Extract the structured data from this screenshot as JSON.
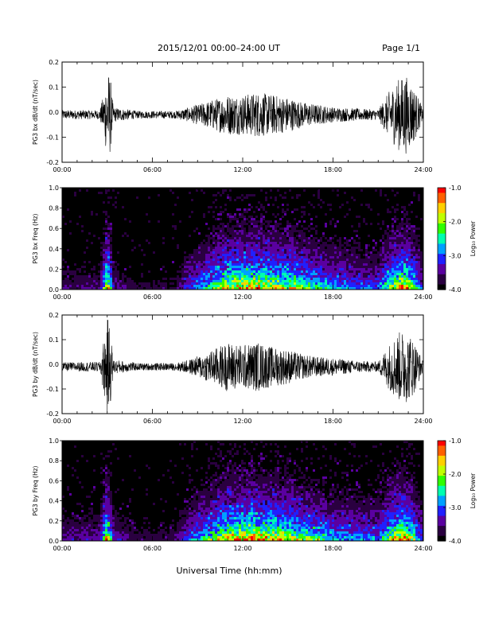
{
  "header": {
    "title": "2015/12/01  00:00–24:00 UT",
    "page": "Page 1/1"
  },
  "xlabel": "Universal Time (hh:mm)",
  "colorbar_label": "Log₁₀ Power",
  "colormap": [
    "#000000",
    "#2a0040",
    "#5a00a0",
    "#2020ff",
    "#00a0ff",
    "#00ffb0",
    "#30ff00",
    "#c0ff00",
    "#ffd000",
    "#ff6000",
    "#ff0000"
  ],
  "chart_data": [
    {
      "type": "line",
      "ylabel": "PG3 bx dB/dt (nT/sec)",
      "x_ticks": [
        "00:00",
        "06:00",
        "12:00",
        "18:00",
        "24:00"
      ],
      "xlim": [
        0,
        24
      ],
      "ylim": [
        -0.2,
        0.2
      ],
      "y_ticks": [
        "-0.2",
        "-0.1",
        "0.0",
        "0.1",
        "0.2"
      ],
      "baseline": -0.01,
      "envelope": {
        "hours": [
          0,
          2.5,
          2.8,
          3.0,
          3.2,
          3.4,
          5,
          7.5,
          8.5,
          10,
          11,
          12,
          13,
          14,
          15,
          16,
          17,
          18,
          19.5,
          21,
          21.8,
          22.3,
          22.8,
          23.3,
          24
        ],
        "amplitude": [
          0.018,
          0.018,
          0.09,
          0.18,
          0.16,
          0.03,
          0.015,
          0.015,
          0.03,
          0.06,
          0.08,
          0.08,
          0.09,
          0.08,
          0.07,
          0.05,
          0.04,
          0.03,
          0.025,
          0.02,
          0.1,
          0.14,
          0.16,
          0.12,
          0.02
        ]
      }
    },
    {
      "type": "heatmap",
      "ylabel": "PG3 bx Freq (Hz)",
      "x_ticks": [
        "00:00",
        "06:00",
        "12:00",
        "18:00",
        "24:00"
      ],
      "xlim": [
        0,
        24
      ],
      "ylim": [
        0,
        1.0
      ],
      "y_ticks": [
        "0.0",
        "0.2",
        "0.4",
        "0.6",
        "0.8",
        "1.0"
      ],
      "colorbar_ticks": [
        "-1.0",
        "-2.0",
        "-3.0",
        "-4.0"
      ],
      "clim": [
        -4.0,
        -1.0
      ],
      "activity": {
        "hours": [
          0,
          2.5,
          2.8,
          3.0,
          3.2,
          3.4,
          5,
          7.5,
          8.5,
          10,
          11,
          12,
          13,
          14,
          15,
          16,
          17,
          18,
          19.5,
          21,
          21.8,
          22.3,
          22.8,
          23.3,
          24
        ],
        "level": [
          0.15,
          0.15,
          0.5,
          0.9,
          0.6,
          0.2,
          0.1,
          0.1,
          0.3,
          0.55,
          0.75,
          0.8,
          0.8,
          0.75,
          0.7,
          0.6,
          0.5,
          0.4,
          0.35,
          0.3,
          0.6,
          0.8,
          0.85,
          0.7,
          0.25
        ]
      }
    },
    {
      "type": "line",
      "ylabel": "PG3 by dB/dt (nT/sec)",
      "x_ticks": [
        "00:00",
        "06:00",
        "12:00",
        "18:00",
        "24:00"
      ],
      "xlim": [
        0,
        24
      ],
      "ylim": [
        -0.2,
        0.2
      ],
      "y_ticks": [
        "-0.2",
        "-0.1",
        "0.0",
        "0.1",
        "0.2"
      ],
      "baseline": -0.01,
      "envelope": {
        "hours": [
          0,
          2.5,
          2.8,
          3.0,
          3.2,
          3.4,
          5,
          7.5,
          8.5,
          10,
          11,
          12,
          13,
          14,
          15,
          16,
          17,
          18,
          19.5,
          21,
          21.8,
          22.3,
          22.8,
          23.3,
          24
        ],
        "amplitude": [
          0.018,
          0.02,
          0.12,
          0.2,
          0.16,
          0.03,
          0.015,
          0.015,
          0.03,
          0.07,
          0.1,
          0.09,
          0.1,
          0.08,
          0.07,
          0.05,
          0.04,
          0.035,
          0.025,
          0.02,
          0.1,
          0.14,
          0.15,
          0.12,
          0.02
        ]
      }
    },
    {
      "type": "heatmap",
      "ylabel": "PG3 by Freq (Hz)",
      "x_ticks": [
        "00:00",
        "06:00",
        "12:00",
        "18:00",
        "24:00"
      ],
      "xlim": [
        0,
        24
      ],
      "ylim": [
        0,
        1.0
      ],
      "y_ticks": [
        "0.0",
        "0.2",
        "0.4",
        "0.6",
        "0.8",
        "1.0"
      ],
      "colorbar_ticks": [
        "-1.0",
        "-2.0",
        "-3.0",
        "-4.0"
      ],
      "clim": [
        -4.0,
        -1.0
      ],
      "activity": {
        "hours": [
          0,
          2.5,
          2.8,
          3.0,
          3.2,
          3.4,
          5,
          7.5,
          8.5,
          10,
          11,
          12,
          13,
          14,
          15,
          16,
          17,
          18,
          19.5,
          21,
          21.8,
          22.3,
          22.8,
          23.3,
          24
        ],
        "level": [
          0.2,
          0.2,
          0.55,
          0.9,
          0.6,
          0.25,
          0.12,
          0.12,
          0.35,
          0.6,
          0.8,
          0.85,
          0.85,
          0.8,
          0.75,
          0.65,
          0.55,
          0.45,
          0.4,
          0.35,
          0.65,
          0.8,
          0.85,
          0.7,
          0.3
        ]
      }
    }
  ]
}
